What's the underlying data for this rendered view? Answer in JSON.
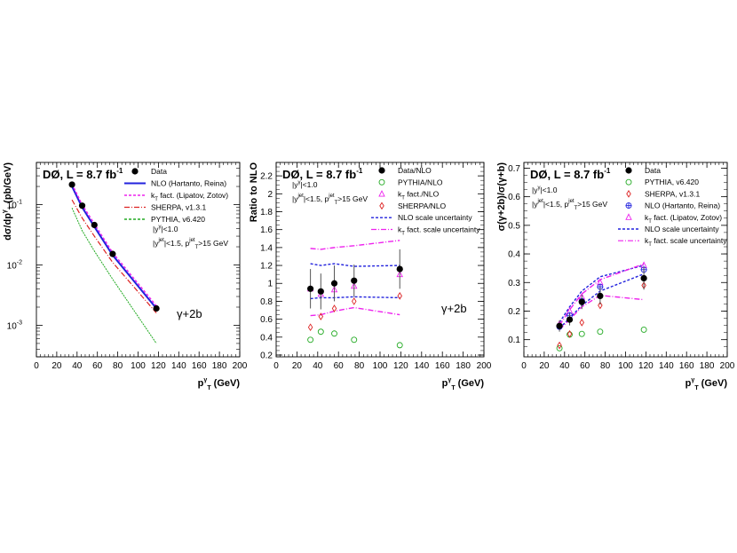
{
  "chart_data": [
    {
      "type": "line",
      "panel": "left",
      "header": "DØ, L = 8.7 fb",
      "header_sup": "-1",
      "ylabel": "dσ/dp",
      "ylabel_sup": "γ",
      "ylabel_sub": "T",
      "ylabel_unit": " (pb/GeV)",
      "xlabel": "p",
      "xlabel_sup": "γ",
      "xlabel_sub": "T",
      "xlabel_unit": " (GeV)",
      "annotation": "γ+2b",
      "yscale": "log",
      "xlim": [
        0,
        200
      ],
      "ylim": [
        0.0003,
        0.5
      ],
      "xticks": [
        0,
        20,
        40,
        60,
        80,
        100,
        120,
        140,
        160,
        180,
        200
      ],
      "yticks": [
        {
          "v": 0.1,
          "label": "10",
          "exp": "-1"
        },
        {
          "v": 0.01,
          "label": "10",
          "exp": "-2"
        },
        {
          "v": 0.001,
          "label": "10",
          "exp": "-3"
        }
      ],
      "cuts": [
        "|y",
        "γ",
        "|<1.0",
        "|y",
        "jet",
        "|<1.5, p",
        "jet",
        "T",
        ">15 GeV"
      ],
      "legend": [
        {
          "label": "Data",
          "style": "marker"
        },
        {
          "label": "NLO (Hartanto, Reina)",
          "style": "solid",
          "color": "#2222dd"
        },
        {
          "label": "k",
          "sub": "T",
          "rest": " fact. (Lipatov, Zotov)",
          "style": "dotted",
          "color": "#ee22ee"
        },
        {
          "label": "SHERPA, v1.3.1",
          "style": "dashdot",
          "color": "#dd2222"
        },
        {
          "label": "PYTHIA, v6.420",
          "style": "dotted",
          "color": "#22aa22"
        }
      ],
      "data_x": [
        35,
        45,
        57,
        75,
        118
      ],
      "data_y": [
        0.215,
        0.096,
        0.046,
        0.0152,
        0.0019
      ],
      "series": [
        {
          "name": "NLO (Hartanto, Reina)",
          "x": [
            35,
            45,
            57,
            75,
            118
          ],
          "y": [
            0.2,
            0.09,
            0.043,
            0.0145,
            0.0019
          ],
          "color": "#2222dd",
          "dash": "",
          "width": 2
        },
        {
          "name": "kT fact. (Lipatov, Zotov)",
          "x": [
            35,
            45,
            57,
            75,
            118
          ],
          "y": [
            0.22,
            0.1,
            0.048,
            0.016,
            0.0021
          ],
          "color": "#ee22ee",
          "dash": "3,2",
          "width": 1.4
        },
        {
          "name": "SHERPA, v1.3.1",
          "x": [
            35,
            45,
            57,
            75,
            118
          ],
          "y": [
            0.12,
            0.06,
            0.03,
            0.011,
            0.0016
          ],
          "color": "#dd2222",
          "dash": "6,2,1,2",
          "width": 1.2
        },
        {
          "name": "PYTHIA, v6.420",
          "x": [
            35,
            45,
            57,
            75,
            118
          ],
          "y": [
            0.088,
            0.037,
            0.017,
            0.0058,
            0.0005
          ],
          "color": "#22aa22",
          "dash": "2,1",
          "width": 1
        }
      ]
    },
    {
      "type": "scatter",
      "panel": "middle",
      "header": "DØ, L = 8.7 fb",
      "header_sup": "-1",
      "ylabel": "Ratio to NLO",
      "xlabel": "p",
      "xlabel_sup": "γ",
      "xlabel_sub": "T",
      "xlabel_unit": " (GeV)",
      "annotation": "γ+2b",
      "xlim": [
        0,
        200
      ],
      "ylim": [
        0.18,
        2.35
      ],
      "xticks": [
        0,
        20,
        40,
        60,
        80,
        100,
        120,
        140,
        160,
        180,
        200
      ],
      "yticks": [
        0.2,
        0.4,
        0.6,
        0.8,
        1,
        1.2,
        1.4,
        1.6,
        1.8,
        2,
        2.2
      ],
      "ytick_labels": [
        "0.2",
        "0.4",
        "0.6",
        "0.8",
        "1",
        "1.2",
        "1.4",
        "1.6",
        "1.8",
        "2",
        "2.2"
      ],
      "cuts": [
        "|y",
        "γ",
        "|<1.0",
        "|y",
        "jet",
        "|<1.5, p",
        "jet",
        "T",
        ">15 GeV"
      ],
      "legend": [
        {
          "label": "Data/NLO",
          "style": "marker"
        },
        {
          "label": "PYTHIA/NLO",
          "style": "circle",
          "color": "#22aa22"
        },
        {
          "label": "k",
          "sub": "T",
          "rest": " fact./NLO",
          "style": "triangle",
          "color": "#ee22ee"
        },
        {
          "label": "SHERPA/NLO",
          "style": "diamond",
          "color": "#dd2222"
        },
        {
          "label": "NLO scale uncertainty",
          "style": "dotted",
          "color": "#2222dd"
        },
        {
          "label": "k",
          "sub": "T",
          "rest": " fact. scale uncertainty",
          "style": "dashdot",
          "color": "#ee22ee"
        }
      ],
      "data_x": [
        33,
        43,
        56,
        75,
        119
      ],
      "data_y": [
        0.94,
        0.91,
        1.0,
        1.03,
        1.16
      ],
      "data_err": [
        0.22,
        0.2,
        0.2,
        0.18,
        0.22
      ],
      "pythia_y": [
        0.37,
        0.46,
        0.44,
        0.37,
        0.31
      ],
      "kt_y": [
        0.94,
        0.88,
        0.93,
        0.97,
        1.1
      ],
      "sherpa_y": [
        0.51,
        0.63,
        0.72,
        0.8,
        0.86
      ],
      "bands": [
        {
          "name": "NLO scale uncertainty upper",
          "x": [
            33,
            43,
            56,
            75,
            119
          ],
          "y": [
            1.22,
            1.2,
            1.22,
            1.19,
            1.2
          ],
          "color": "#2222dd",
          "dash": "3,2"
        },
        {
          "name": "NLO scale uncertainty lower",
          "x": [
            33,
            43,
            56,
            75,
            119
          ],
          "y": [
            0.83,
            0.84,
            0.84,
            0.85,
            0.84
          ],
          "color": "#2222dd",
          "dash": "3,2"
        },
        {
          "name": "kT fact. scale uncertainty upper",
          "x": [
            33,
            43,
            56,
            75,
            119
          ],
          "y": [
            1.39,
            1.38,
            1.4,
            1.42,
            1.48
          ],
          "color": "#ee22ee",
          "dash": "6,2,1,2"
        },
        {
          "name": "kT fact. scale uncertainty lower",
          "x": [
            33,
            43,
            56,
            75,
            119
          ],
          "y": [
            0.64,
            0.65,
            0.69,
            0.73,
            0.65
          ],
          "color": "#ee22ee",
          "dash": "6,2,1,2"
        }
      ]
    },
    {
      "type": "scatter",
      "panel": "right",
      "header": "DØ, L = 8.7 fb",
      "header_sup": "-1",
      "ylabel": "σ(γ+2b)/σ(γ+b)",
      "xlabel": "p",
      "xlabel_sup": "γ",
      "xlabel_sub": "T",
      "xlabel_unit": " (GeV)",
      "xlim": [
        0,
        200
      ],
      "ylim": [
        0.04,
        0.72
      ],
      "xticks": [
        0,
        20,
        40,
        60,
        80,
        100,
        120,
        140,
        160,
        180,
        200
      ],
      "yticks": [
        0.1,
        0.2,
        0.3,
        0.4,
        0.5,
        0.6,
        0.7
      ],
      "ytick_labels": [
        "0.1",
        "0.2",
        "0.3",
        "0.4",
        "0.5",
        "0.6",
        "0.7"
      ],
      "cuts": [
        "|y",
        "γ",
        "|<1.0",
        "|y",
        "jet",
        "|<1.5, p",
        "jet",
        "T",
        ">15 GeV"
      ],
      "legend": [
        {
          "label": "Data",
          "style": "marker"
        },
        {
          "label": "PYTHIA, v6.420",
          "style": "circle",
          "color": "#22aa22"
        },
        {
          "label": "SHERPA, v1.3.1",
          "style": "diamond",
          "color": "#dd2222"
        },
        {
          "label": "NLO (Hartanto, Reina)",
          "style": "opencross",
          "color": "#2222dd"
        },
        {
          "label": "k",
          "sub": "T",
          "rest": " fact. (Lipatov, Zotov)",
          "style": "triangle",
          "color": "#ee22ee"
        },
        {
          "label": "NLO scale uncertainty",
          "style": "dotted",
          "color": "#2222dd"
        },
        {
          "label": "k",
          "sub": "T",
          "rest": " fact. scale uncertainty",
          "style": "dashdot",
          "color": "#ee22ee"
        }
      ],
      "data_x": [
        35,
        45,
        57,
        75,
        118
      ],
      "data_y": [
        0.148,
        0.17,
        0.232,
        0.253,
        0.315
      ],
      "data_err": [
        0.02,
        0.02,
        0.025,
        0.03,
        0.04
      ],
      "pythia_y": [
        0.07,
        0.118,
        0.12,
        0.128,
        0.135
      ],
      "sherpa_y": [
        0.08,
        0.12,
        0.16,
        0.22,
        0.29
      ],
      "nlo_y": [
        0.145,
        0.185,
        0.235,
        0.285,
        0.345
      ],
      "kt_y": [
        0.155,
        0.2,
        0.25,
        0.3,
        0.36
      ],
      "bands": [
        {
          "name": "NLO scale uncertainty upper",
          "x": [
            35,
            45,
            57,
            75,
            118
          ],
          "y": [
            0.16,
            0.215,
            0.27,
            0.32,
            0.36
          ],
          "color": "#2222dd",
          "dash": "3,2"
        },
        {
          "name": "NLO scale uncertainty lower",
          "x": [
            35,
            45,
            57,
            75,
            118
          ],
          "y": [
            0.14,
            0.175,
            0.22,
            0.27,
            0.33
          ],
          "color": "#2222dd",
          "dash": "3,2"
        },
        {
          "name": "kT fact. scale uncertainty upper",
          "x": [
            35,
            45,
            57,
            75,
            118
          ],
          "y": [
            0.15,
            0.205,
            0.26,
            0.31,
            0.365
          ],
          "color": "#ee22ee",
          "dash": "6,2,1,2"
        },
        {
          "name": "kT fact. scale uncertainty lower",
          "x": [
            35,
            45,
            57,
            75,
            118
          ],
          "y": [
            0.135,
            0.17,
            0.215,
            0.255,
            0.24
          ],
          "color": "#ee22ee",
          "dash": "6,2,1,2"
        }
      ]
    }
  ]
}
